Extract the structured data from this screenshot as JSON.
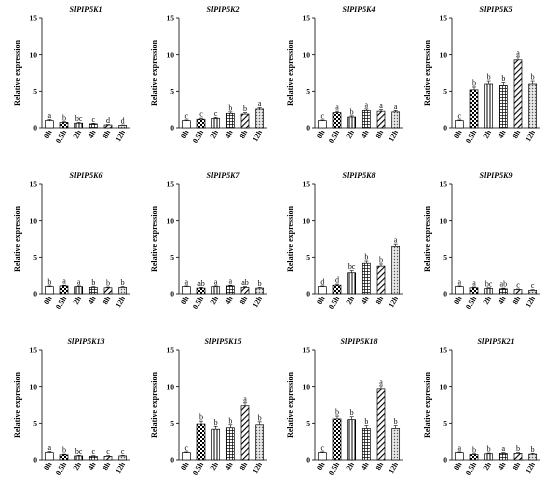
{
  "chart_data": [
    {
      "type": "bar",
      "title": "SlPIP5K1",
      "ylabel": "Relative expression",
      "ylim": [
        0,
        15
      ],
      "yticks": [
        0,
        5,
        10,
        15
      ],
      "categories": [
        "0h",
        "0.5h",
        "2h",
        "4h",
        "8h",
        "12h"
      ],
      "values": [
        1.0,
        0.75,
        0.65,
        0.55,
        0.4,
        0.35
      ],
      "errors": [
        0.15,
        0.1,
        0.1,
        0.08,
        0.06,
        0.05
      ],
      "labels": [
        "a",
        "b",
        "bc",
        "c",
        "d",
        "d"
      ]
    },
    {
      "type": "bar",
      "title": "SlPIP5K2",
      "ylabel": "Relative expression",
      "ylim": [
        0,
        15
      ],
      "yticks": [
        0,
        5,
        10,
        15
      ],
      "categories": [
        "0h",
        "0.5h",
        "2h",
        "4h",
        "8h",
        "12h"
      ],
      "values": [
        1.0,
        1.2,
        1.3,
        2.0,
        1.9,
        2.6
      ],
      "errors": [
        0.1,
        0.15,
        0.15,
        0.2,
        0.2,
        0.2
      ],
      "labels": [
        "c",
        "c",
        "c",
        "b",
        "b",
        "a"
      ]
    },
    {
      "type": "bar",
      "title": "SlPIP5K4",
      "ylabel": "Relative expression",
      "ylim": [
        0,
        15
      ],
      "yticks": [
        0,
        5,
        10,
        15
      ],
      "categories": [
        "0h",
        "0.5h",
        "2h",
        "4h",
        "8h",
        "12h"
      ],
      "values": [
        1.0,
        2.1,
        1.5,
        2.4,
        2.3,
        2.2
      ],
      "errors": [
        0.1,
        0.2,
        0.15,
        0.2,
        0.2,
        0.2
      ],
      "labels": [
        "c",
        "a",
        "b",
        "a",
        "a",
        "a"
      ]
    },
    {
      "type": "bar",
      "title": "SlPIP5K5",
      "ylabel": "Relative expression",
      "ylim": [
        0,
        15
      ],
      "yticks": [
        0,
        5,
        10,
        15
      ],
      "categories": [
        "0h",
        "0.5h",
        "2h",
        "4h",
        "8h",
        "12h"
      ],
      "values": [
        1.0,
        5.2,
        6.0,
        5.8,
        9.3,
        6.0
      ],
      "errors": [
        0.1,
        0.4,
        0.4,
        0.4,
        0.4,
        0.4
      ],
      "labels": [
        "c",
        "b",
        "b",
        "b",
        "a",
        "b"
      ]
    },
    {
      "type": "bar",
      "title": "SlPIP5K6",
      "ylabel": "Relative expression",
      "ylim": [
        0,
        15
      ],
      "yticks": [
        0,
        5,
        10,
        15
      ],
      "categories": [
        "0h",
        "0.5h",
        "2h",
        "4h",
        "8h",
        "12h"
      ],
      "values": [
        1.0,
        1.1,
        1.0,
        0.9,
        0.85,
        0.9
      ],
      "errors": [
        0.1,
        0.1,
        0.1,
        0.1,
        0.1,
        0.1
      ],
      "labels": [
        "b",
        "a",
        "a",
        "b",
        "b",
        "b"
      ]
    },
    {
      "type": "bar",
      "title": "SlPIP5K7",
      "ylabel": "Relative expression",
      "ylim": [
        0,
        15
      ],
      "yticks": [
        0,
        5,
        10,
        15
      ],
      "categories": [
        "0h",
        "0.5h",
        "2h",
        "4h",
        "8h",
        "12h"
      ],
      "values": [
        1.0,
        0.8,
        1.0,
        1.1,
        0.9,
        0.8
      ],
      "errors": [
        0.1,
        0.1,
        0.1,
        0.1,
        0.1,
        0.1
      ],
      "labels": [
        "a",
        "ab",
        "a",
        "a",
        "ab",
        "b"
      ]
    },
    {
      "type": "bar",
      "title": "SlPIP5K8",
      "ylabel": "Relative expression",
      "ylim": [
        0,
        15
      ],
      "yticks": [
        0,
        5,
        10,
        15
      ],
      "categories": [
        "0h",
        "0.5h",
        "2h",
        "4h",
        "8h",
        "12h"
      ],
      "values": [
        1.0,
        1.2,
        2.9,
        4.2,
        3.8,
        6.5
      ],
      "errors": [
        0.1,
        0.15,
        0.3,
        0.3,
        0.3,
        0.3
      ],
      "labels": [
        "d",
        "d",
        "bc",
        "b",
        "b",
        "a"
      ]
    },
    {
      "type": "bar",
      "title": "SlPIP5K9",
      "ylabel": "Relative expression",
      "ylim": [
        0,
        15
      ],
      "yticks": [
        0,
        5,
        10,
        15
      ],
      "categories": [
        "0h",
        "0.5h",
        "2h",
        "4h",
        "8h",
        "12h"
      ],
      "values": [
        1.0,
        0.85,
        0.75,
        0.7,
        0.6,
        0.5
      ],
      "errors": [
        0.1,
        0.1,
        0.1,
        0.1,
        0.08,
        0.08
      ],
      "labels": [
        "a",
        "a",
        "bc",
        "ab",
        "c",
        "c"
      ]
    },
    {
      "type": "bar",
      "title": "SlPIP5K13",
      "ylabel": "Relative expression",
      "ylim": [
        0,
        15
      ],
      "yticks": [
        0,
        5,
        10,
        15
      ],
      "categories": [
        "0h",
        "0.5h",
        "2h",
        "4h",
        "8h",
        "12h"
      ],
      "values": [
        1.0,
        0.7,
        0.55,
        0.5,
        0.5,
        0.55
      ],
      "errors": [
        0.15,
        0.1,
        0.08,
        0.08,
        0.08,
        0.08
      ],
      "labels": [
        "a",
        "b",
        "bc",
        "c",
        "c",
        "c"
      ]
    },
    {
      "type": "bar",
      "title": "SlPIP5K15",
      "ylabel": "Relative expression",
      "ylim": [
        0,
        15
      ],
      "yticks": [
        0,
        5,
        10,
        15
      ],
      "categories": [
        "0h",
        "0.5h",
        "2h",
        "4h",
        "8h",
        "12h"
      ],
      "values": [
        1.0,
        4.9,
        4.2,
        4.4,
        7.4,
        4.8
      ],
      "errors": [
        0.1,
        0.4,
        0.4,
        0.4,
        0.4,
        0.4
      ],
      "labels": [
        "c",
        "b",
        "b",
        "b",
        "a",
        "b"
      ]
    },
    {
      "type": "bar",
      "title": "SlPIP5K18",
      "ylabel": "Relative expression",
      "ylim": [
        0,
        15
      ],
      "yticks": [
        0,
        5,
        10,
        15
      ],
      "categories": [
        "0h",
        "0.5h",
        "2h",
        "4h",
        "8h",
        "12h"
      ],
      "values": [
        1.0,
        5.6,
        5.5,
        4.3,
        9.7,
        4.3
      ],
      "errors": [
        0.1,
        0.4,
        0.4,
        0.4,
        0.4,
        0.4
      ],
      "labels": [
        "c",
        "b",
        "b",
        "b",
        "a",
        "b"
      ]
    },
    {
      "type": "bar",
      "title": "SlPIP5K21",
      "ylabel": "Relative expression",
      "ylim": [
        0,
        15
      ],
      "yticks": [
        0,
        5,
        10,
        15
      ],
      "categories": [
        "0h",
        "0.5h",
        "2h",
        "4h",
        "8h",
        "12h"
      ],
      "values": [
        1.0,
        0.75,
        0.85,
        0.9,
        0.9,
        0.8
      ],
      "errors": [
        0.1,
        0.1,
        0.1,
        0.1,
        0.1,
        0.1
      ],
      "labels": [
        "a",
        "b",
        "b",
        "a",
        "b",
        "b"
      ]
    }
  ],
  "bar_patterns": [
    "blank",
    "checker",
    "stripe",
    "grid",
    "diagonal",
    "dots"
  ]
}
